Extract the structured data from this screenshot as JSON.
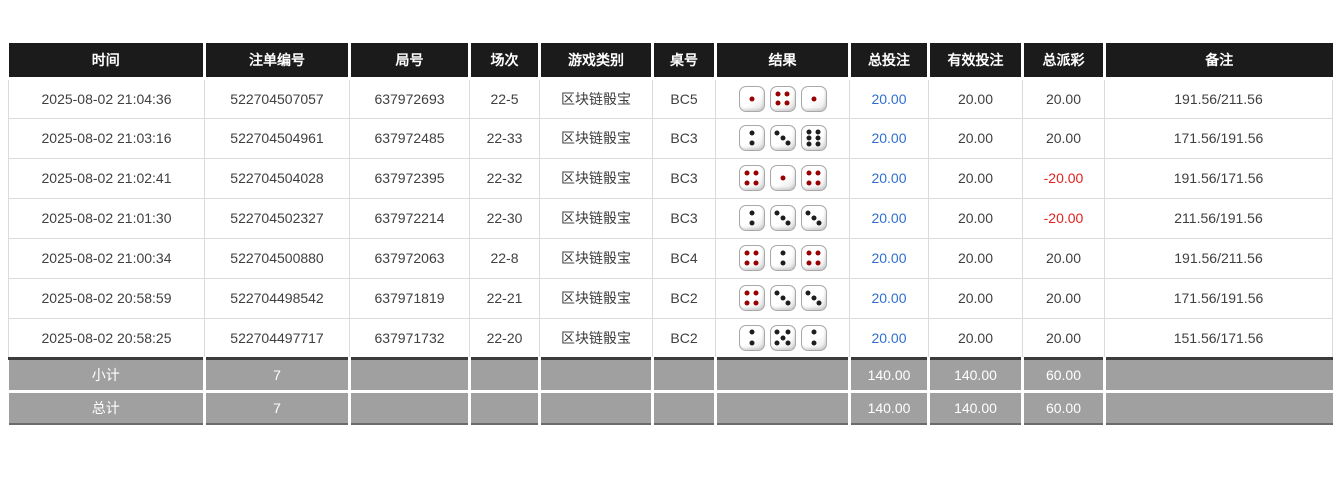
{
  "table": {
    "columns": [
      {
        "key": "time",
        "label": "时间"
      },
      {
        "key": "bet_id",
        "label": "注单编号"
      },
      {
        "key": "round_id",
        "label": "局号"
      },
      {
        "key": "session",
        "label": "场次"
      },
      {
        "key": "game_type",
        "label": "游戏类别"
      },
      {
        "key": "table_no",
        "label": "桌号"
      },
      {
        "key": "result",
        "label": "结果"
      },
      {
        "key": "total_bet",
        "label": "总投注"
      },
      {
        "key": "valid_bet",
        "label": "有效投注"
      },
      {
        "key": "total_payout",
        "label": "总派彩"
      },
      {
        "key": "remark",
        "label": "备注"
      }
    ],
    "rows": [
      {
        "time": "2025-08-02 21:04:36",
        "bet_id": "522704507057",
        "round_id": "637972693",
        "session": "22-5",
        "game_type": "区块链骰宝",
        "table_no": "BC5",
        "result": [
          1,
          4,
          1
        ],
        "total_bet": "20.00",
        "valid_bet": "20.00",
        "total_payout": "20.00",
        "remark": "191.56/211.56"
      },
      {
        "time": "2025-08-02 21:03:16",
        "bet_id": "522704504961",
        "round_id": "637972485",
        "session": "22-33",
        "game_type": "区块链骰宝",
        "table_no": "BC3",
        "result": [
          2,
          3,
          6
        ],
        "total_bet": "20.00",
        "valid_bet": "20.00",
        "total_payout": "20.00",
        "remark": "171.56/191.56"
      },
      {
        "time": "2025-08-02 21:02:41",
        "bet_id": "522704504028",
        "round_id": "637972395",
        "session": "22-32",
        "game_type": "区块链骰宝",
        "table_no": "BC3",
        "result": [
          4,
          1,
          4
        ],
        "total_bet": "20.00",
        "valid_bet": "20.00",
        "total_payout": "-20.00",
        "remark": "191.56/171.56"
      },
      {
        "time": "2025-08-02 21:01:30",
        "bet_id": "522704502327",
        "round_id": "637972214",
        "session": "22-30",
        "game_type": "区块链骰宝",
        "table_no": "BC3",
        "result": [
          2,
          3,
          3
        ],
        "total_bet": "20.00",
        "valid_bet": "20.00",
        "total_payout": "-20.00",
        "remark": "211.56/191.56"
      },
      {
        "time": "2025-08-02 21:00:34",
        "bet_id": "522704500880",
        "round_id": "637972063",
        "session": "22-8",
        "game_type": "区块链骰宝",
        "table_no": "BC4",
        "result": [
          4,
          2,
          4
        ],
        "total_bet": "20.00",
        "valid_bet": "20.00",
        "total_payout": "20.00",
        "remark": "191.56/211.56"
      },
      {
        "time": "2025-08-02 20:58:59",
        "bet_id": "522704498542",
        "round_id": "637971819",
        "session": "22-21",
        "game_type": "区块链骰宝",
        "table_no": "BC2",
        "result": [
          4,
          3,
          3
        ],
        "total_bet": "20.00",
        "valid_bet": "20.00",
        "total_payout": "20.00",
        "remark": "171.56/191.56"
      },
      {
        "time": "2025-08-02 20:58:25",
        "bet_id": "522704497717",
        "round_id": "637971732",
        "session": "22-20",
        "game_type": "区块链骰宝",
        "table_no": "BC2",
        "result": [
          2,
          5,
          2
        ],
        "total_bet": "20.00",
        "valid_bet": "20.00",
        "total_payout": "20.00",
        "remark": "151.56/171.56"
      }
    ],
    "summary_rows": [
      {
        "label": "小计",
        "count": "7",
        "total_bet": "140.00",
        "valid_bet": "140.00",
        "total_payout": "60.00"
      },
      {
        "label": "总计",
        "count": "7",
        "total_bet": "140.00",
        "valid_bet": "140.00",
        "total_payout": "60.00"
      }
    ]
  },
  "dice": {
    "red_values": [
      1,
      4
    ]
  },
  "colors": {
    "header_bg": "#1b1b1b",
    "header_text": "#ffffff",
    "summary_bg": "#a0a0a0",
    "summary_text": "#ffffff",
    "bet_link_blue": "#2f6fd0",
    "negative_red": "#e02222",
    "dice_pip_red": "#990000",
    "dice_pip_black": "#1d1d1d"
  }
}
